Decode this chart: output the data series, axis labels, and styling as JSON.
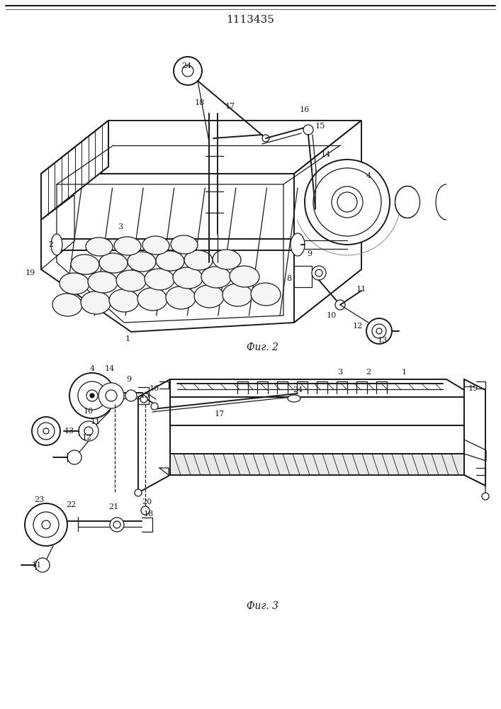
{
  "title": "1113435",
  "fig2_label": "Фиг. 2",
  "fig3_label": "Фиг. 3",
  "bg_color": "#ffffff",
  "line_color": "#1a1a1a",
  "title_fontsize": 11,
  "label_fontsize": 9,
  "fig_width": 7.07,
  "fig_height": 10.0,
  "dpi": 100
}
